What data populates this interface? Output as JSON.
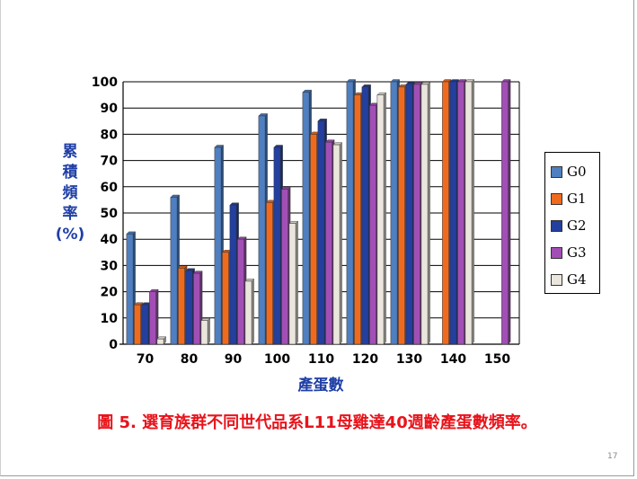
{
  "slide": {
    "caption": "圖 5. 選育族群不同世代品系L11母雞達40週齡產蛋數頻率。",
    "page_number": "17"
  },
  "chart_data": {
    "type": "bar",
    "title": "",
    "xlabel": "產蛋數",
    "ylabel_chars": [
      "累",
      "積",
      "頻",
      "率",
      "(%)"
    ],
    "categories": [
      "70",
      "80",
      "90",
      "100",
      "110",
      "120",
      "130",
      "140",
      "150"
    ],
    "ylim": [
      0,
      100
    ],
    "yticks": [
      0,
      10,
      20,
      30,
      40,
      50,
      60,
      70,
      80,
      90,
      100
    ],
    "grid": true,
    "legend_position": "right",
    "series": [
      {
        "name": "G0",
        "color": "#4f7fc1",
        "values": [
          42,
          56,
          75,
          87,
          96,
          100,
          100,
          null,
          null
        ]
      },
      {
        "name": "G1",
        "color": "#f06a1e",
        "values": [
          15,
          29,
          35,
          54,
          80,
          95,
          98,
          100,
          null
        ]
      },
      {
        "name": "G2",
        "color": "#233f9f",
        "values": [
          15,
          28,
          53,
          75,
          85,
          98,
          99,
          100,
          null
        ]
      },
      {
        "name": "G3",
        "color": "#a24fb5",
        "values": [
          20,
          27,
          40,
          59,
          77,
          91,
          99,
          100,
          100
        ]
      },
      {
        "name": "G4",
        "color": "#ebe6dd",
        "values": [
          2,
          9,
          24,
          46,
          76,
          95,
          99,
          100,
          null
        ]
      }
    ]
  }
}
